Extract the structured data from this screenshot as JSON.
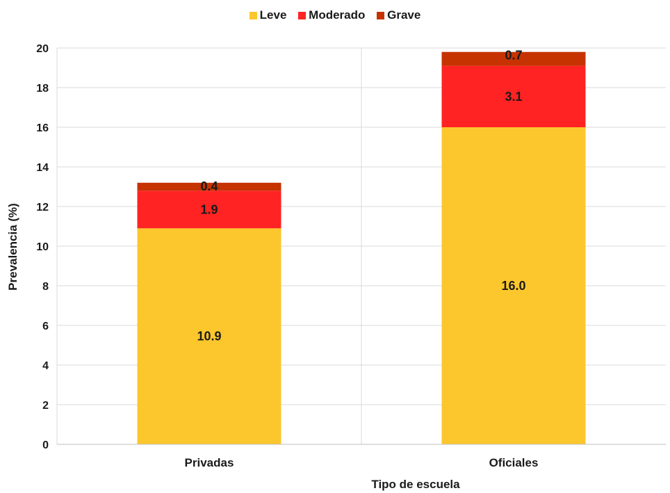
{
  "chart_data": {
    "type": "bar",
    "stacked": true,
    "categories": [
      "Privadas",
      "Oficiales"
    ],
    "series": [
      {
        "name": "Leve",
        "values": [
          10.9,
          16.0
        ],
        "color": "#fcc72c"
      },
      {
        "name": "Moderado",
        "values": [
          1.9,
          3.1
        ],
        "color": "#ff2323"
      },
      {
        "name": "Grave",
        "values": [
          0.4,
          0.7
        ],
        "color": "#c63300"
      }
    ],
    "data_labels": [
      [
        "10.9",
        "16.0"
      ],
      [
        "1.9",
        "3.1"
      ],
      [
        "0.4",
        "0.7"
      ]
    ],
    "xlabel": "Tipo de escuela",
    "ylabel": "Prevalencia (%)",
    "ylim": [
      0,
      20
    ],
    "yticks": [
      0,
      2,
      4,
      6,
      8,
      10,
      12,
      14,
      16,
      18,
      20
    ],
    "grid": true,
    "legend_position": "top"
  }
}
